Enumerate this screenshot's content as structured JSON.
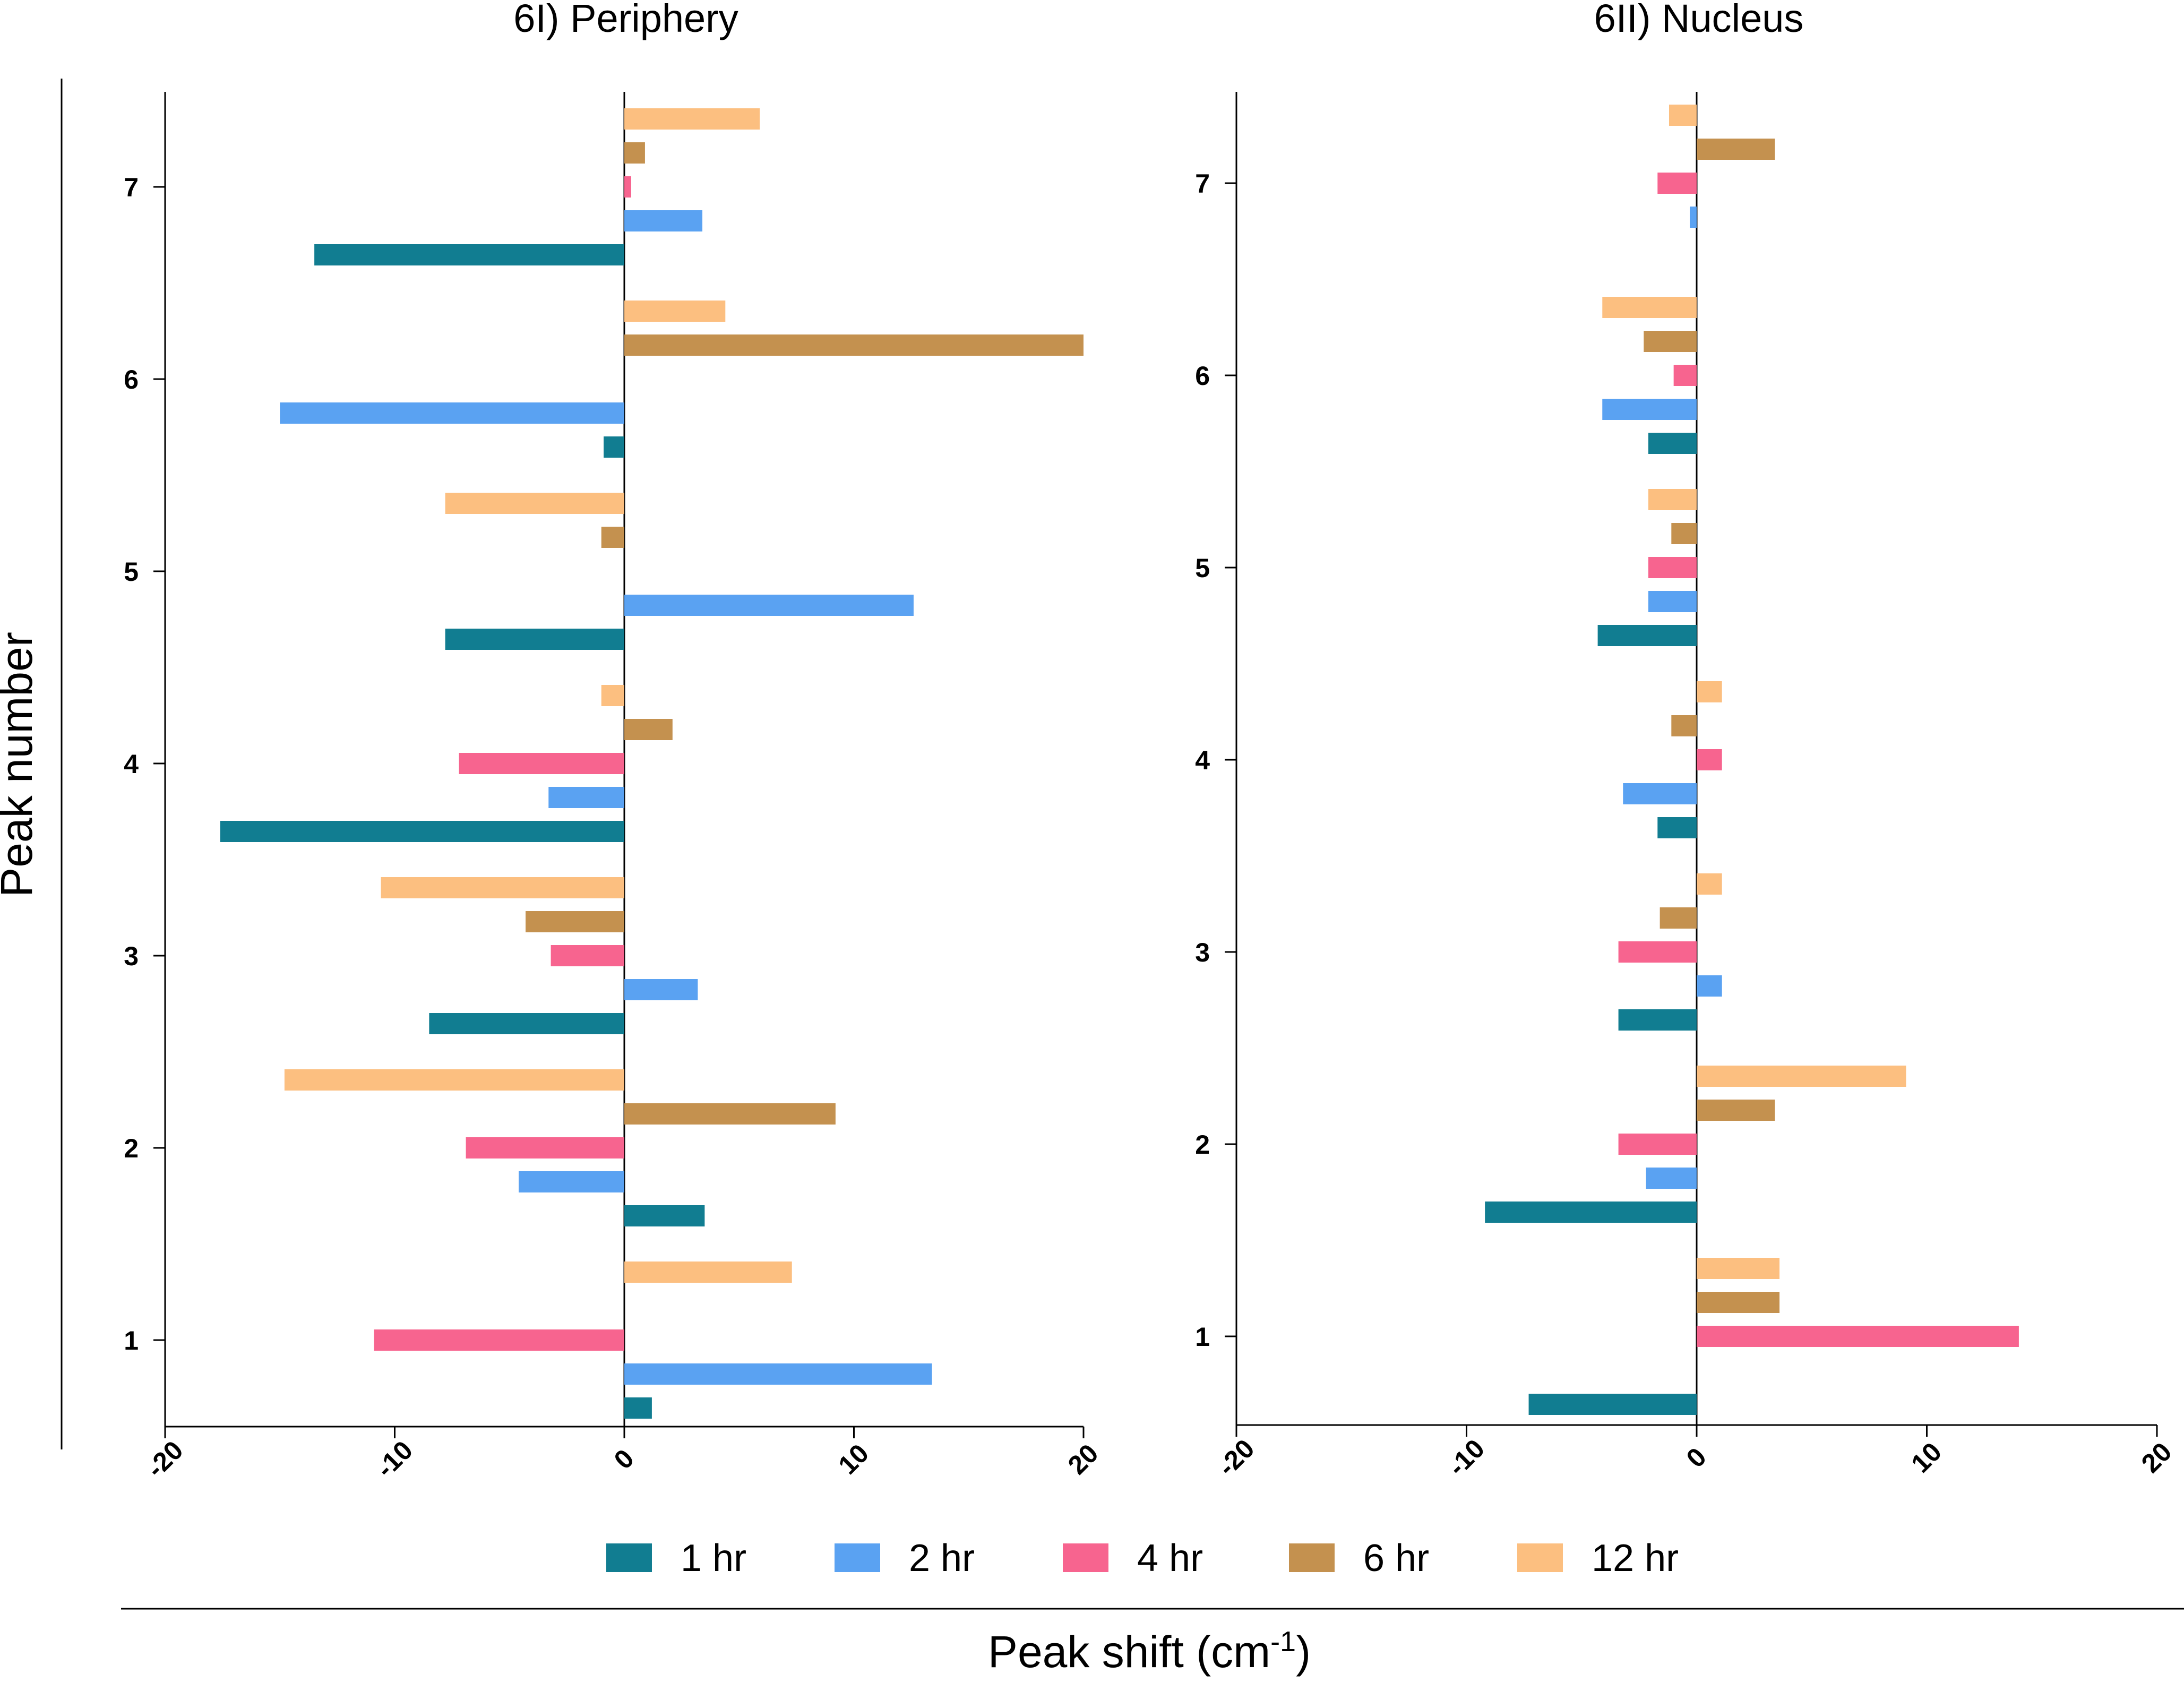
{
  "chart_data": {
    "type": "bar",
    "orientation": "horizontal",
    "shared": {
      "categories": [
        "1",
        "2",
        "3",
        "4",
        "5",
        "6",
        "7"
      ],
      "xlabel_main": "Peak shift (cm",
      "xlabel_sup": "-1",
      "xlabel_close": ")",
      "ylabel": "Peak number",
      "xlim": [
        -20,
        20
      ],
      "xticks": [
        "-20",
        "-10",
        "0",
        "10",
        "20"
      ],
      "legend_position": "bottom",
      "series_names": [
        "1 hr",
        "2 hr",
        "4 hr",
        "6 hr",
        "12 hr"
      ],
      "series_colors": [
        "#117d91",
        "#5aa2f2",
        "#f7648f",
        "#c4914f",
        "#fcbf80"
      ]
    },
    "panels": [
      {
        "title": "6I) Periphery",
        "series": [
          {
            "name": "1 hr",
            "values": [
              1.2,
              3.5,
              -8.5,
              -17.6,
              -7.8,
              -0.9,
              -13.5
            ]
          },
          {
            "name": "2 hr",
            "values": [
              13.4,
              -4.6,
              3.2,
              -3.3,
              12.6,
              -15.0,
              3.4
            ]
          },
          {
            "name": "4 hr",
            "values": [
              -10.9,
              -6.9,
              -3.2,
              -7.2,
              null,
              null,
              0.3
            ]
          },
          {
            "name": "6 hr",
            "values": [
              null,
              9.2,
              -4.3,
              2.1,
              -1.0,
              20.0,
              0.9
            ]
          },
          {
            "name": "12 hr",
            "values": [
              7.3,
              -14.8,
              -10.6,
              -1.0,
              -7.8,
              4.4,
              5.9
            ]
          }
        ]
      },
      {
        "title": "6II) Nucleus",
        "series": [
          {
            "name": "1 hr",
            "values": [
              -7.3,
              -9.2,
              -3.4,
              -1.7,
              -4.3,
              -2.1,
              null
            ]
          },
          {
            "name": "2 hr",
            "values": [
              null,
              -2.2,
              1.1,
              -3.2,
              -2.1,
              -4.1,
              -0.3
            ]
          },
          {
            "name": "4 hr",
            "values": [
              14.0,
              -3.4,
              -3.4,
              1.1,
              -2.1,
              -1.0,
              -1.7
            ]
          },
          {
            "name": "6 hr",
            "values": [
              3.6,
              3.4,
              -1.6,
              -1.1,
              -1.1,
              -2.3,
              3.4
            ]
          },
          {
            "name": "12 hr",
            "values": [
              3.6,
              9.1,
              1.1,
              1.1,
              -2.1,
              -4.1,
              -1.2
            ]
          }
        ]
      }
    ]
  }
}
